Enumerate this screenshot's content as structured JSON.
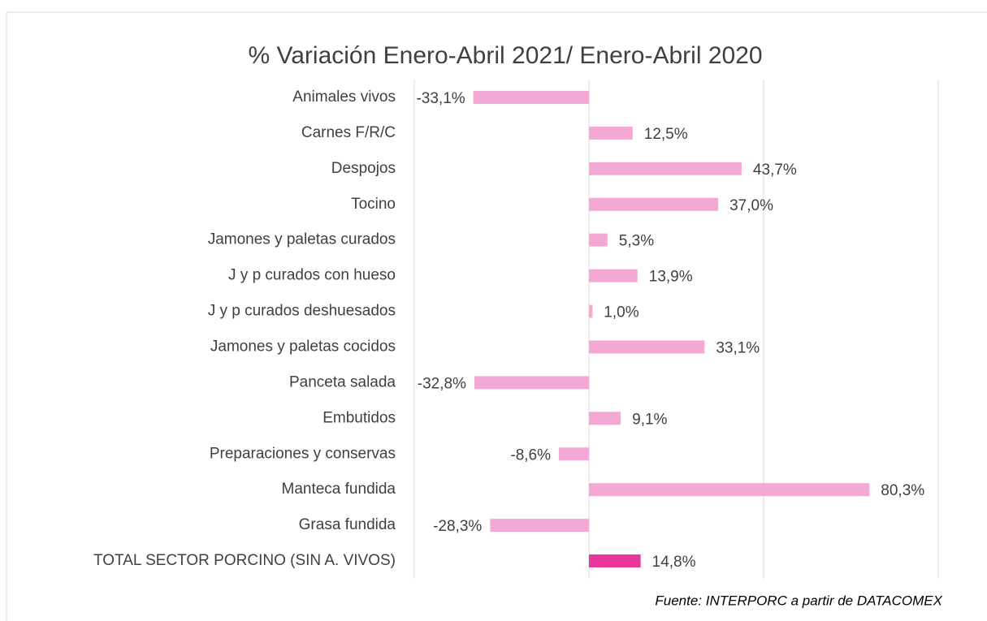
{
  "chart_data": {
    "type": "hbar",
    "title": "% Variación Enero-Abril 2021/ Enero-Abril 2020",
    "source": "Fuente: INTERPORC  a partir de DATACOMEX",
    "categories": [
      "Animales vivos",
      "Carnes F/R/C",
      "Despojos",
      "Tocino",
      "Jamones y paletas curados",
      "J y p curados con hueso",
      "J y p curados deshuesados",
      "Jamones y paletas cocidos",
      "Panceta salada",
      "Embutidos",
      "Preparaciones y conservas",
      "Manteca fundida",
      "Grasa fundida",
      "TOTAL SECTOR PORCINO (SIN A. VIVOS)"
    ],
    "values": [
      -33.1,
      12.5,
      43.7,
      37.0,
      5.3,
      13.9,
      1.0,
      33.1,
      -32.8,
      9.1,
      -8.6,
      80.3,
      -28.3,
      14.8
    ],
    "value_labels": [
      "-33,1%",
      "12,5%",
      "43,7%",
      "37,0%",
      "5,3%",
      "13,9%",
      "1,0%",
      "33,1%",
      "-32,8%",
      "9,1%",
      "-8,6%",
      "80,3%",
      "-28,3%",
      "14,8%"
    ],
    "colors": [
      "#f4a9d4",
      "#f4a9d4",
      "#f4a9d4",
      "#f4a9d4",
      "#f4a9d4",
      "#f4a9d4",
      "#f4a9d4",
      "#f4a9d4",
      "#f4a9d4",
      "#f4a9d4",
      "#f4a9d4",
      "#f4a9d4",
      "#f4a9d4",
      "#e8369b"
    ],
    "xlim": [
      -50,
      100
    ],
    "xticks": [
      -50,
      0,
      50,
      100
    ],
    "grid": true,
    "show_tick_labels": false
  }
}
